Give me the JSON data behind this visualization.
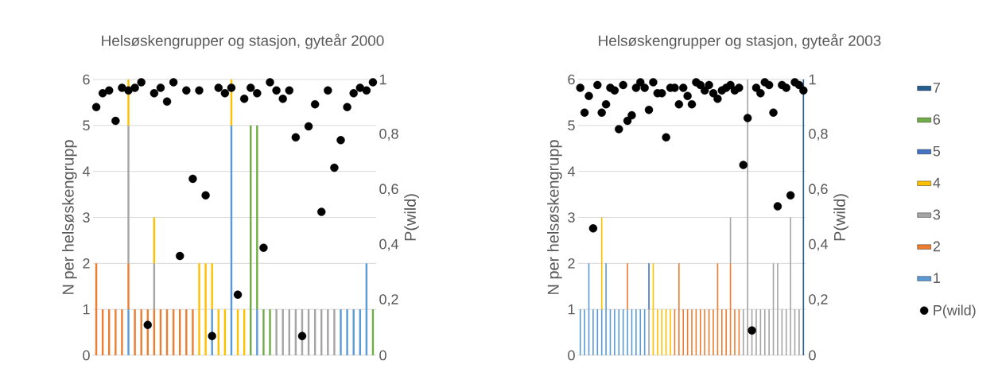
{
  "chart_data": [
    {
      "type": "bar",
      "stacked": true,
      "title": "Helsøskengrupper og stasjon, gyteår 2000",
      "ylabel": "N per helsøskengrupp",
      "y2label": "P(wild)",
      "grid": "y",
      "categories": [
        null,
        null,
        null,
        null,
        null,
        null,
        null,
        null,
        null,
        null,
        null,
        null,
        null,
        null,
        null,
        null,
        null,
        null,
        null,
        null,
        null,
        null,
        null,
        null,
        null,
        null,
        null,
        null,
        null,
        null,
        null,
        null,
        null,
        null,
        null,
        null,
        null,
        null,
        null,
        null,
        null,
        null,
        null,
        null
      ],
      "ylim": [
        0,
        6
      ],
      "yticks": [
        0,
        1,
        2,
        3,
        4,
        5,
        6
      ],
      "y2lim": [
        0,
        1
      ],
      "y2ticks": [
        0,
        {
          "value": 0.2,
          "label": "0,2"
        },
        {
          "value": 0.4,
          "label": "0,4"
        },
        {
          "value": 0.6,
          "label": "0,6"
        },
        {
          "value": 0.8,
          "label": "0,8"
        },
        1
      ],
      "series": [
        {
          "color": "#5b9bd5",
          "values": [
            null,
            null,
            null,
            null,
            null,
            1,
            null,
            null,
            null,
            null,
            null,
            null,
            null,
            null,
            null,
            null,
            null,
            null,
            1,
            null,
            null,
            5,
            null,
            null,
            null,
            1,
            null,
            null,
            null,
            null,
            null,
            null,
            null,
            null,
            null,
            null,
            null,
            null,
            1,
            1,
            1,
            1,
            2,
            null
          ]
        },
        {
          "color": "#ed7d31",
          "values": [
            2,
            1,
            1,
            1,
            1,
            1,
            1,
            1,
            1,
            1,
            1,
            1,
            1,
            1,
            1,
            1,
            null,
            null,
            null,
            null,
            null,
            null,
            null,
            null,
            null,
            null,
            null,
            null,
            null,
            null,
            null,
            null,
            null,
            null,
            null,
            null,
            null,
            null,
            null,
            null,
            null,
            null,
            null,
            null
          ]
        },
        {
          "color": "#a5a5a5",
          "values": [
            null,
            null,
            null,
            null,
            null,
            3,
            null,
            null,
            null,
            1,
            null,
            null,
            null,
            null,
            null,
            null,
            null,
            null,
            null,
            null,
            null,
            null,
            null,
            null,
            null,
            null,
            null,
            null,
            1,
            1,
            1,
            1,
            1,
            1,
            1,
            1,
            1,
            1,
            null,
            null,
            null,
            null,
            null,
            null
          ]
        },
        {
          "color": "#ffc000",
          "values": [
            null,
            null,
            null,
            null,
            null,
            1,
            null,
            null,
            null,
            1,
            null,
            null,
            null,
            null,
            null,
            null,
            2,
            2,
            1,
            1,
            1,
            1,
            1,
            1,
            null,
            null,
            null,
            null,
            null,
            null,
            null,
            null,
            null,
            null,
            null,
            null,
            null,
            null,
            null,
            null,
            null,
            null,
            null,
            null
          ]
        },
        {
          "color": "#70ad47",
          "values": [
            null,
            null,
            null,
            null,
            null,
            null,
            null,
            null,
            null,
            null,
            null,
            null,
            null,
            null,
            null,
            null,
            null,
            null,
            null,
            null,
            null,
            null,
            null,
            null,
            5,
            4,
            1,
            1,
            null,
            null,
            null,
            null,
            null,
            null,
            null,
            null,
            null,
            null,
            null,
            null,
            null,
            null,
            null,
            1
          ]
        },
        {
          "type": "scatter",
          "axis": "y2",
          "color": "#000000",
          "marker": "circle",
          "values": [
            0.9,
            0.95,
            0.96,
            0.85,
            0.97,
            0.96,
            0.97,
            0.99,
            0.11,
            0.95,
            0.97,
            0.92,
            0.99,
            0.36,
            0.96,
            0.64,
            0.96,
            0.58,
            0.07,
            0.97,
            0.95,
            0.97,
            0.22,
            0.93,
            0.97,
            0.95,
            0.39,
            0.99,
            0.96,
            0.93,
            0.96,
            0.79,
            0.07,
            0.83,
            0.91,
            0.52,
            0.96,
            0.68,
            0.78,
            0.9,
            0.95,
            0.97,
            0.96,
            0.99
          ]
        }
      ]
    },
    {
      "type": "bar",
      "stacked": true,
      "title": "Helsøskengrupper og stasjon, gyteår 2003",
      "ylabel": "N per helsøskengrupp",
      "y2label": "P(wild)",
      "grid": "y",
      "legend": "right",
      "categories": [
        null,
        null,
        null,
        null,
        null,
        null,
        null,
        null,
        null,
        null,
        null,
        null,
        null,
        null,
        null,
        null,
        null,
        null,
        null,
        null,
        null,
        null,
        null,
        null,
        null,
        null,
        null,
        null,
        null,
        null,
        null,
        null,
        null,
        null,
        null,
        null,
        null,
        null,
        null,
        null,
        null,
        null,
        null,
        null,
        null,
        null,
        null,
        null,
        null,
        null,
        null,
        null,
        null
      ],
      "ylim": [
        0,
        6
      ],
      "yticks": [
        0,
        1,
        2,
        3,
        4,
        5,
        6
      ],
      "y2lim": [
        0,
        1
      ],
      "y2ticks": [
        0,
        {
          "value": 0.2,
          "label": "0,2"
        },
        {
          "value": 0.4,
          "label": "0,4"
        },
        {
          "value": 0.6,
          "label": "0,6"
        },
        {
          "value": 0.8,
          "label": "0,8"
        },
        1
      ],
      "series": [
        {
          "name": "1",
          "color": "#5b9bd5",
          "values": [
            1,
            1,
            2,
            1,
            1,
            1,
            2,
            1,
            1,
            1,
            1,
            1,
            1,
            1,
            1,
            1,
            null,
            null,
            null,
            null,
            null,
            null,
            null,
            null,
            null,
            null,
            null,
            null,
            null,
            null,
            null,
            null,
            null,
            null,
            null,
            null,
            null,
            null,
            null,
            null,
            null,
            null,
            null,
            null,
            null,
            null,
            null,
            null,
            null,
            null,
            null,
            null,
            null
          ]
        },
        {
          "name": "2",
          "color": "#ed7d31",
          "values": [
            null,
            null,
            null,
            null,
            null,
            null,
            null,
            null,
            null,
            null,
            null,
            1,
            null,
            null,
            null,
            null,
            null,
            null,
            null,
            null,
            null,
            null,
            1,
            2,
            1,
            1,
            1,
            1,
            1,
            1,
            1,
            1,
            2,
            1,
            1,
            2,
            1,
            1,
            null,
            null,
            null,
            null,
            null,
            null,
            null,
            null,
            null,
            null,
            null,
            null,
            null,
            null,
            null
          ]
        },
        {
          "name": "3",
          "color": "#a5a5a5",
          "values": [
            null,
            null,
            null,
            null,
            null,
            null,
            null,
            null,
            null,
            null,
            null,
            null,
            null,
            null,
            null,
            null,
            1,
            null,
            null,
            null,
            null,
            null,
            null,
            null,
            null,
            null,
            null,
            null,
            null,
            null,
            null,
            null,
            null,
            null,
            null,
            1,
            null,
            null,
            1,
            6,
            1,
            1,
            1,
            1,
            1,
            2,
            2,
            1,
            1,
            3,
            1,
            1,
            null
          ]
        },
        {
          "name": "4",
          "color": "#ffc000",
          "values": [
            null,
            null,
            null,
            null,
            null,
            2,
            null,
            null,
            null,
            null,
            null,
            null,
            null,
            null,
            null,
            null,
            null,
            2,
            1,
            1,
            1,
            1,
            null,
            null,
            null,
            null,
            null,
            null,
            null,
            null,
            null,
            null,
            null,
            null,
            null,
            null,
            null,
            null,
            null,
            null,
            null,
            null,
            null,
            null,
            null,
            null,
            null,
            null,
            null,
            null,
            null,
            null,
            null
          ]
        },
        {
          "name": "5",
          "color": "#4472c4",
          "values": [
            null,
            null,
            null,
            null,
            null,
            null,
            null,
            null,
            null,
            null,
            null,
            null,
            null,
            null,
            null,
            null,
            1,
            null,
            null,
            null,
            null,
            null,
            null,
            null,
            null,
            null,
            null,
            null,
            null,
            null,
            null,
            null,
            null,
            null,
            null,
            null,
            null,
            null,
            null,
            null,
            null,
            null,
            null,
            null,
            null,
            null,
            null,
            null,
            null,
            null,
            null,
            null,
            null
          ]
        },
        {
          "name": "6",
          "color": "#70ad47",
          "values": [
            null,
            null,
            null,
            null,
            null,
            null,
            null,
            null,
            null,
            null,
            null,
            null,
            null,
            null,
            null,
            null,
            null,
            null,
            null,
            null,
            null,
            null,
            null,
            null,
            null,
            null,
            null,
            null,
            null,
            null,
            null,
            null,
            null,
            null,
            null,
            null,
            null,
            null,
            null,
            null,
            null,
            null,
            null,
            null,
            null,
            null,
            null,
            null,
            null,
            null,
            null,
            null,
            null
          ]
        },
        {
          "name": "7",
          "color": "#255e91",
          "values": [
            null,
            null,
            null,
            null,
            null,
            null,
            null,
            null,
            null,
            null,
            null,
            null,
            null,
            null,
            null,
            null,
            null,
            null,
            null,
            null,
            null,
            null,
            null,
            null,
            null,
            null,
            null,
            null,
            null,
            null,
            null,
            null,
            null,
            null,
            null,
            null,
            null,
            null,
            null,
            null,
            null,
            null,
            null,
            null,
            null,
            null,
            null,
            null,
            null,
            null,
            null,
            null,
            6
          ]
        },
        {
          "name": "P(wild)",
          "type": "scatter",
          "axis": "y2",
          "color": "#000000",
          "marker": "circle",
          "values": [
            0.97,
            0.88,
            0.94,
            0.46,
            0.98,
            0.88,
            0.91,
            0.97,
            0.96,
            0.82,
            0.98,
            0.85,
            0.87,
            0.97,
            0.99,
            0.97,
            0.89,
            0.99,
            0.95,
            0.95,
            0.79,
            0.97,
            0.97,
            0.91,
            0.97,
            0.94,
            0.91,
            0.99,
            0.98,
            0.96,
            0.98,
            0.95,
            0.93,
            0.96,
            0.97,
            0.98,
            0.96,
            0.97,
            0.69,
            0.86,
            0.09,
            0.97,
            0.95,
            0.99,
            0.98,
            0.88,
            0.54,
            0.98,
            0.97,
            0.58,
            0.99,
            0.98,
            0.96
          ]
        }
      ]
    }
  ]
}
